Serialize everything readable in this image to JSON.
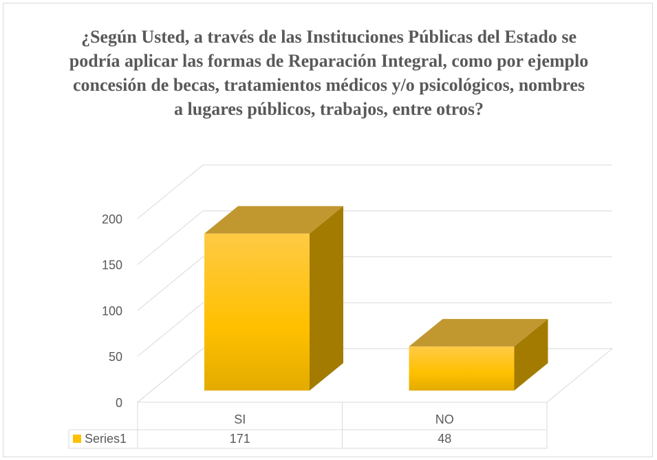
{
  "chart_data": {
    "type": "bar",
    "title": "¿Según Usted, a través de las Instituciones Públicas del Estado se podría aplicar las formas de Reparación Integral, como por ejemplo concesión de becas, tratamientos médicos y/o psicológicos, nombres a lugares públicos, trabajos, entre otros?",
    "categories": [
      "SI",
      "NO"
    ],
    "series": [
      {
        "name": "Series1",
        "color": "#ffc000",
        "values": [
          171,
          48
        ]
      }
    ],
    "ylim": [
      0,
      200
    ],
    "yticks": [
      0,
      50,
      100,
      150,
      200
    ],
    "grid": true,
    "data_table": true
  }
}
